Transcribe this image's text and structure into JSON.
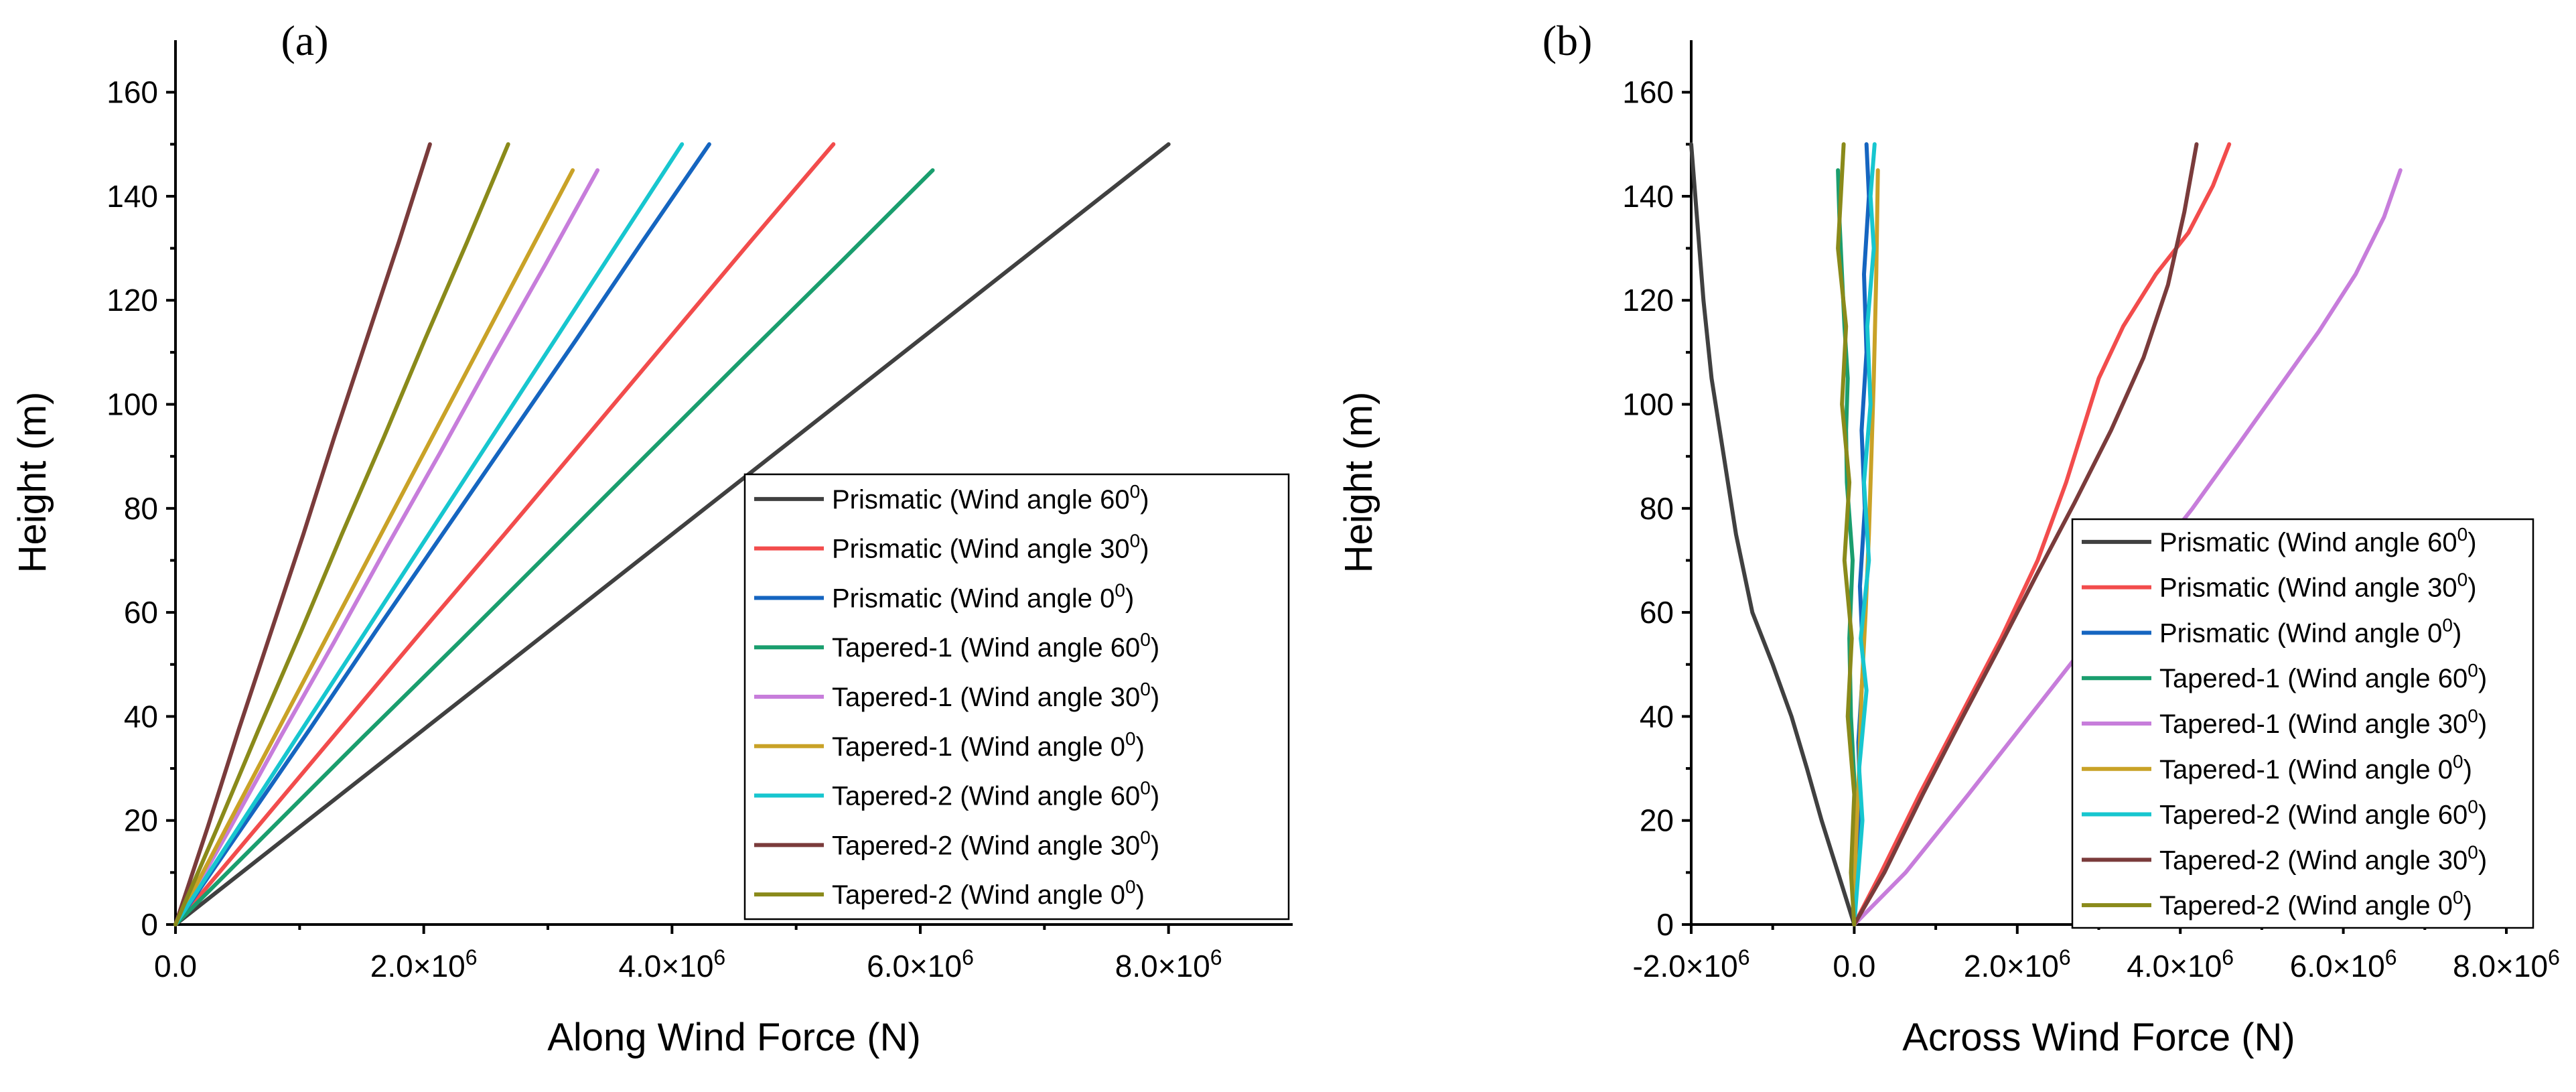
{
  "chart_data": [
    {
      "type": "line",
      "panel": "(a)",
      "xlabel": "Along Wind Force (N)",
      "ylabel": "Height (m)",
      "xlim": [
        0,
        9000000
      ],
      "ylim": [
        0,
        170
      ],
      "x_ticks": [
        {
          "value": 0,
          "mantissa": "0.0",
          "exp": ""
        },
        {
          "value": 2000000,
          "mantissa": "2.0×10",
          "exp": "6"
        },
        {
          "value": 4000000,
          "mantissa": "4.0×10",
          "exp": "6"
        },
        {
          "value": 6000000,
          "mantissa": "6.0×10",
          "exp": "6"
        },
        {
          "value": 8000000,
          "mantissa": "8.0×10",
          "exp": "6"
        }
      ],
      "y_ticks": [
        0,
        20,
        40,
        60,
        80,
        100,
        120,
        140,
        160
      ],
      "legend_position": "bottom-right",
      "series": [
        {
          "name": "Prismatic (Wind angle 60",
          "sup": "0",
          "color": "#404040",
          "x": [
            0,
            1000000,
            2000000,
            3000000,
            4000000,
            5000000,
            6000000,
            7000000,
            8000000
          ],
          "y": [
            0,
            18.75,
            37.5,
            56.25,
            75,
            93.75,
            112.5,
            131.25,
            150
          ]
        },
        {
          "name": "Prismatic (Wind angle 30",
          "sup": "0",
          "color": "#f24c4c",
          "x": [
            0,
            660000,
            1320000,
            1980000,
            2650000,
            3310000,
            3970000,
            4630000,
            5300000
          ],
          "y": [
            0,
            18.75,
            37.5,
            56.25,
            75,
            93.75,
            112.5,
            131.25,
            150
          ]
        },
        {
          "name": "Prismatic (Wind angle 0",
          "sup": "0",
          "color": "#1565c0",
          "x": [
            0,
            540000,
            1080000,
            1610000,
            2150000,
            2690000,
            3230000,
            3760000,
            4300000
          ],
          "y": [
            0,
            18.75,
            37.5,
            56.25,
            75,
            93.75,
            112.5,
            131.25,
            150
          ]
        },
        {
          "name": "Tapered-1 (Wind angle 60",
          "sup": "0",
          "color": "#1a9e6e",
          "x": [
            0,
            760000,
            1520000,
            2290000,
            3050000,
            3810000,
            4570000,
            5340000,
            6100000
          ],
          "y": [
            0,
            18.13,
            36.25,
            54.38,
            72.5,
            90.63,
            108.75,
            126.88,
            145
          ]
        },
        {
          "name": "Tapered-1 (Wind angle 30",
          "sup": "0",
          "color": "#c77ddb",
          "x": [
            0,
            430000,
            850000,
            1280000,
            1700000,
            2130000,
            2550000,
            2980000,
            3400000
          ],
          "y": [
            0,
            18.13,
            36.25,
            54.38,
            72.5,
            90.63,
            108.75,
            126.88,
            145
          ]
        },
        {
          "name": "Tapered-1 (Wind angle 0",
          "sup": "0",
          "color": "#c9a227",
          "x": [
            0,
            400000,
            800000,
            1200000,
            1600000,
            2000000,
            2400000,
            2800000,
            3200000
          ],
          "y": [
            0,
            18.13,
            36.25,
            54.38,
            72.5,
            90.63,
            108.75,
            126.88,
            145
          ]
        },
        {
          "name": "Tapered-2 (Wind angle 60",
          "sup": "0",
          "color": "#17c6cf",
          "x": [
            0,
            510000,
            1020000,
            1530000,
            2040000,
            2550000,
            3060000,
            3570000,
            4080000
          ],
          "y": [
            0,
            18.75,
            37.5,
            56.25,
            75,
            93.75,
            112.5,
            131.25,
            150
          ]
        },
        {
          "name": "Tapered-2 (Wind angle 30",
          "sup": "0",
          "color": "#7a3b3b",
          "x": [
            0,
            260000,
            510000,
            770000,
            1030000,
            1280000,
            1540000,
            1800000,
            2050000
          ],
          "y": [
            0,
            18.75,
            37.5,
            56.25,
            75,
            93.75,
            112.5,
            131.25,
            150
          ]
        },
        {
          "name": "Tapered-2 (Wind angle 0",
          "sup": "0",
          "color": "#8a8a1a",
          "x": [
            0,
            340000,
            670000,
            1010000,
            1340000,
            1680000,
            2010000,
            2350000,
            2680000
          ],
          "y": [
            0,
            18.75,
            37.5,
            56.25,
            75,
            93.75,
            112.5,
            131.25,
            150
          ]
        }
      ]
    },
    {
      "type": "line",
      "panel": "(b)",
      "xlabel": "Across Wind Force (N)",
      "ylabel": "Height (m)",
      "xlim": [
        -2000000,
        8000000
      ],
      "ylim": [
        0,
        170
      ],
      "x_ticks": [
        {
          "value": -2000000,
          "mantissa": "-2.0×10",
          "exp": "6"
        },
        {
          "value": 0,
          "mantissa": "0.0",
          "exp": ""
        },
        {
          "value": 2000000,
          "mantissa": "2.0×10",
          "exp": "6"
        },
        {
          "value": 4000000,
          "mantissa": "4.0×10",
          "exp": "6"
        },
        {
          "value": 6000000,
          "mantissa": "6.0×10",
          "exp": "6"
        },
        {
          "value": 8000000,
          "mantissa": "8.0×10",
          "exp": "6"
        }
      ],
      "y_ticks": [
        0,
        20,
        40,
        60,
        80,
        100,
        120,
        140,
        160
      ],
      "legend_position": "bottom-right",
      "series": [
        {
          "name": "Prismatic (Wind angle 60",
          "sup": "0",
          "color": "#404040",
          "x": [
            0,
            -200000,
            -400000,
            -580000,
            -770000,
            -1000000,
            -1250000,
            -1450000,
            -1600000,
            -1750000,
            -1850000,
            -1950000,
            -2000000
          ],
          "y": [
            0,
            10,
            20,
            30,
            40,
            50,
            60,
            75,
            90,
            105,
            120,
            140,
            150
          ]
        },
        {
          "name": "Prismatic (Wind angle 30",
          "sup": "0",
          "color": "#f24c4c",
          "x": [
            0,
            330000,
            800000,
            1300000,
            1800000,
            2250000,
            2600000,
            2800000,
            3000000,
            3300000,
            3700000,
            4100000,
            4400000,
            4600000
          ],
          "y": [
            0,
            10,
            25,
            40,
            55,
            70,
            85,
            95,
            105,
            115,
            125,
            133,
            142,
            150
          ]
        },
        {
          "name": "Prismatic (Wind angle 0",
          "sup": "0",
          "color": "#1565c0",
          "x": [
            0,
            30000,
            80000,
            50000,
            110000,
            70000,
            130000,
            90000,
            150000,
            120000,
            180000,
            150000
          ],
          "y": [
            0,
            10,
            20,
            35,
            50,
            65,
            80,
            95,
            110,
            125,
            140,
            150
          ]
        },
        {
          "name": "Tapered-1 (Wind angle 60",
          "sup": "0",
          "color": "#1a9e6e",
          "x": [
            0,
            -20000,
            10000,
            -40000,
            -60000,
            -20000,
            -90000,
            -100000,
            -80000,
            -120000,
            -150000,
            -180000,
            -200000
          ],
          "y": [
            0,
            10,
            25,
            40,
            55,
            70,
            85,
            95,
            105,
            115,
            125,
            135,
            145
          ]
        },
        {
          "name": "Tapered-1 (Wind angle 30",
          "sup": "0",
          "color": "#c77ddb",
          "x": [
            0,
            630000,
            1400000,
            2100000,
            2800000,
            3500000,
            4150000,
            4700000,
            5200000,
            5700000,
            6150000,
            6500000,
            6700000
          ],
          "y": [
            0,
            10,
            25,
            39,
            53,
            67,
            80,
            92,
            103,
            114,
            125,
            136,
            145
          ]
        },
        {
          "name": "Tapered-1 (Wind angle 0",
          "sup": "0",
          "color": "#c9a227",
          "x": [
            0,
            20000,
            60000,
            90000,
            140000,
            180000,
            210000,
            240000,
            270000,
            290000
          ],
          "y": [
            0,
            15,
            30,
            45,
            60,
            75,
            90,
            105,
            125,
            145
          ]
        },
        {
          "name": "Tapered-2 (Wind angle 60",
          "sup": "0",
          "color": "#17c6cf",
          "x": [
            0,
            50000,
            100000,
            60000,
            150000,
            80000,
            180000,
            120000,
            200000,
            160000,
            240000,
            200000,
            250000
          ],
          "y": [
            0,
            10,
            20,
            30,
            45,
            55,
            70,
            85,
            100,
            115,
            130,
            140,
            150
          ]
        },
        {
          "name": "Tapered-2 (Wind angle 30",
          "sup": "0",
          "color": "#7a3b3b",
          "x": [
            0,
            370000,
            840000,
            1300000,
            1770000,
            2230000,
            2700000,
            3150000,
            3550000,
            3850000,
            4050000,
            4200000
          ],
          "y": [
            0,
            10,
            25,
            39,
            53,
            67,
            81,
            95,
            109,
            123,
            137,
            150
          ]
        },
        {
          "name": "Tapered-2 (Wind angle 0",
          "sup": "0",
          "color": "#8a8a1a",
          "x": [
            0,
            -40000,
            0,
            -80000,
            -30000,
            -120000,
            -60000,
            -150000,
            -100000,
            -200000,
            -130000
          ],
          "y": [
            0,
            10,
            25,
            40,
            55,
            70,
            85,
            100,
            115,
            130,
            150
          ]
        }
      ]
    }
  ]
}
